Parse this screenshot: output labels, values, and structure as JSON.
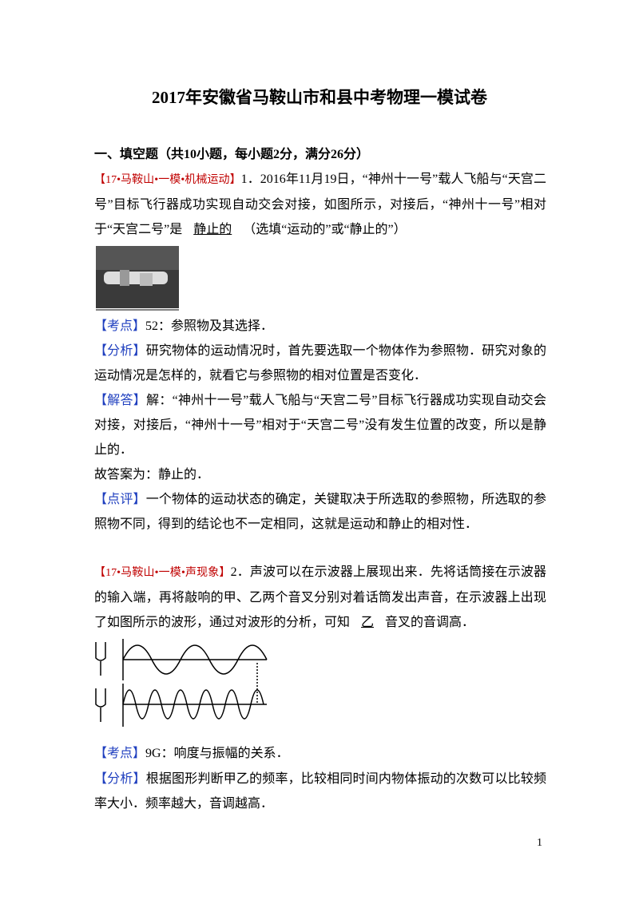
{
  "header": {
    "title": "2017年安徽省马鞍山市和县中考物理一模试卷"
  },
  "section": {
    "title": "一、填空题（共10小题，每小题2分，满分26分）"
  },
  "questions": [
    {
      "tag": "【17•马鞍山•一模•机械运动】",
      "number": "1．",
      "stem_before": "2016年11月19日，“神州十一号”载人飞船与“天宫二号”目标飞行器成功实现自动交会对接，如图所示，对接后，“神州十一号”相对于“天宫二号”是",
      "answer": "静止的",
      "stem_after": "（选填“运动的”或“静止的”）",
      "notes": [
        {
          "label": "【考点】",
          "text": "52：参照物及其选择．"
        },
        {
          "label": "【分析】",
          "text": "研究物体的运动情况时，首先要选取一个物体作为参照物．研究对象的运动情况是怎样的，就看它与参照物的相对位置是否变化．"
        },
        {
          "label": "【解答】",
          "text": "解：“神州十一号”载人飞船与“天宫二号”目标飞行器成功实现自动交会对接，对接后，“神州十一号”相对于“天宫二号”没有发生位置的改变，所以是静止的．"
        },
        {
          "label": "",
          "text": "故答案为：静止的．"
        },
        {
          "label": "【点评】",
          "text": "一个物体的运动状态的确定，关键取决于所选取的参照物，所选取的参照物不同，得到的结论也不一定相同，这就是运动和静止的相对性．"
        }
      ]
    },
    {
      "tag": "【17•马鞍山•一模•声现象】",
      "number": "2．",
      "stem_before": "声波可以在示波器上展现出来．先将话筒接在示波器的输入端，再将敲响的甲、乙两个音叉分别对着话筒发出声音，在示波器上出现了如图所示的波形，通过对波形的分析，可知",
      "answer": "乙",
      "stem_after": "音叉的音调高．",
      "notes": [
        {
          "label": "【考点】",
          "text": "9G：响度与振幅的关系．"
        },
        {
          "label": "【分析】",
          "text": "根据图形判断甲乙的频率，比较相同时间内物体振动的次数可以比较频率大小．频率越大，音调越高．"
        }
      ]
    }
  ],
  "footer": {
    "page": "1"
  }
}
